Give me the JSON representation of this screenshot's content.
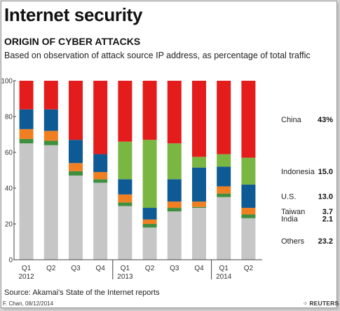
{
  "header": {
    "title": "Internet security",
    "subtitle": "ORIGIN OF CYBER ATTACKS",
    "description": "Based on observation of attack source IP address, as percentage of total traffic"
  },
  "footer": {
    "source": "Source: Akamai's State of the Internet reports",
    "credit": "F. Chan, 08/12/2014",
    "brand": "REUTERS",
    "brand_icon": "reuters-dots-icon"
  },
  "chart_data": {
    "type": "bar",
    "stacked": true,
    "ylim": [
      0,
      100
    ],
    "y_ticks": [
      0,
      20,
      40,
      60,
      80,
      100
    ],
    "grid": false,
    "xlabel": "",
    "ylabel": "",
    "categories": [
      {
        "quarter": "Q1",
        "year": "2012"
      },
      {
        "quarter": "Q2",
        "year": ""
      },
      {
        "quarter": "Q3",
        "year": ""
      },
      {
        "quarter": "Q4",
        "year": ""
      },
      {
        "quarter": "Q1",
        "year": "2013"
      },
      {
        "quarter": "Q2",
        "year": ""
      },
      {
        "quarter": "Q3",
        "year": ""
      },
      {
        "quarter": "Q4",
        "year": ""
      },
      {
        "quarter": "Q1",
        "year": "2014"
      },
      {
        "quarter": "Q2",
        "year": ""
      }
    ],
    "series": [
      {
        "name": "Others",
        "color": "#c6c6c6",
        "last_value_label": "23.2",
        "values": [
          65,
          64,
          47,
          43,
          30,
          18,
          27,
          29,
          35,
          23.2
        ]
      },
      {
        "name": "India",
        "color": "#3f8f3f",
        "last_value_label": "2.1",
        "values": [
          2.5,
          2.5,
          2.5,
          2,
          2,
          2,
          2,
          0.5,
          2,
          2.1
        ]
      },
      {
        "name": "Taiwan",
        "color": "#f07f22",
        "last_value_label": "3.7",
        "values": [
          5.5,
          5.5,
          4.5,
          4,
          4.5,
          2.5,
          3.5,
          3,
          4,
          3.7
        ]
      },
      {
        "name": "U.S.",
        "color": "#0e5a95",
        "last_value_label": "13.0",
        "values": [
          11,
          12,
          13,
          10,
          8.5,
          6.5,
          12.5,
          19,
          11,
          13
        ]
      },
      {
        "name": "Indonesia",
        "color": "#7ab642",
        "last_value_label": "15.0",
        "values": [
          0,
          0,
          0,
          0,
          21,
          38,
          20,
          6,
          7,
          15
        ]
      },
      {
        "name": "China",
        "color": "#e41c1c",
        "last_value_label": "43%",
        "values": [
          16,
          16,
          33,
          41,
          34,
          33,
          35,
          42.5,
          41,
          43
        ]
      }
    ]
  }
}
